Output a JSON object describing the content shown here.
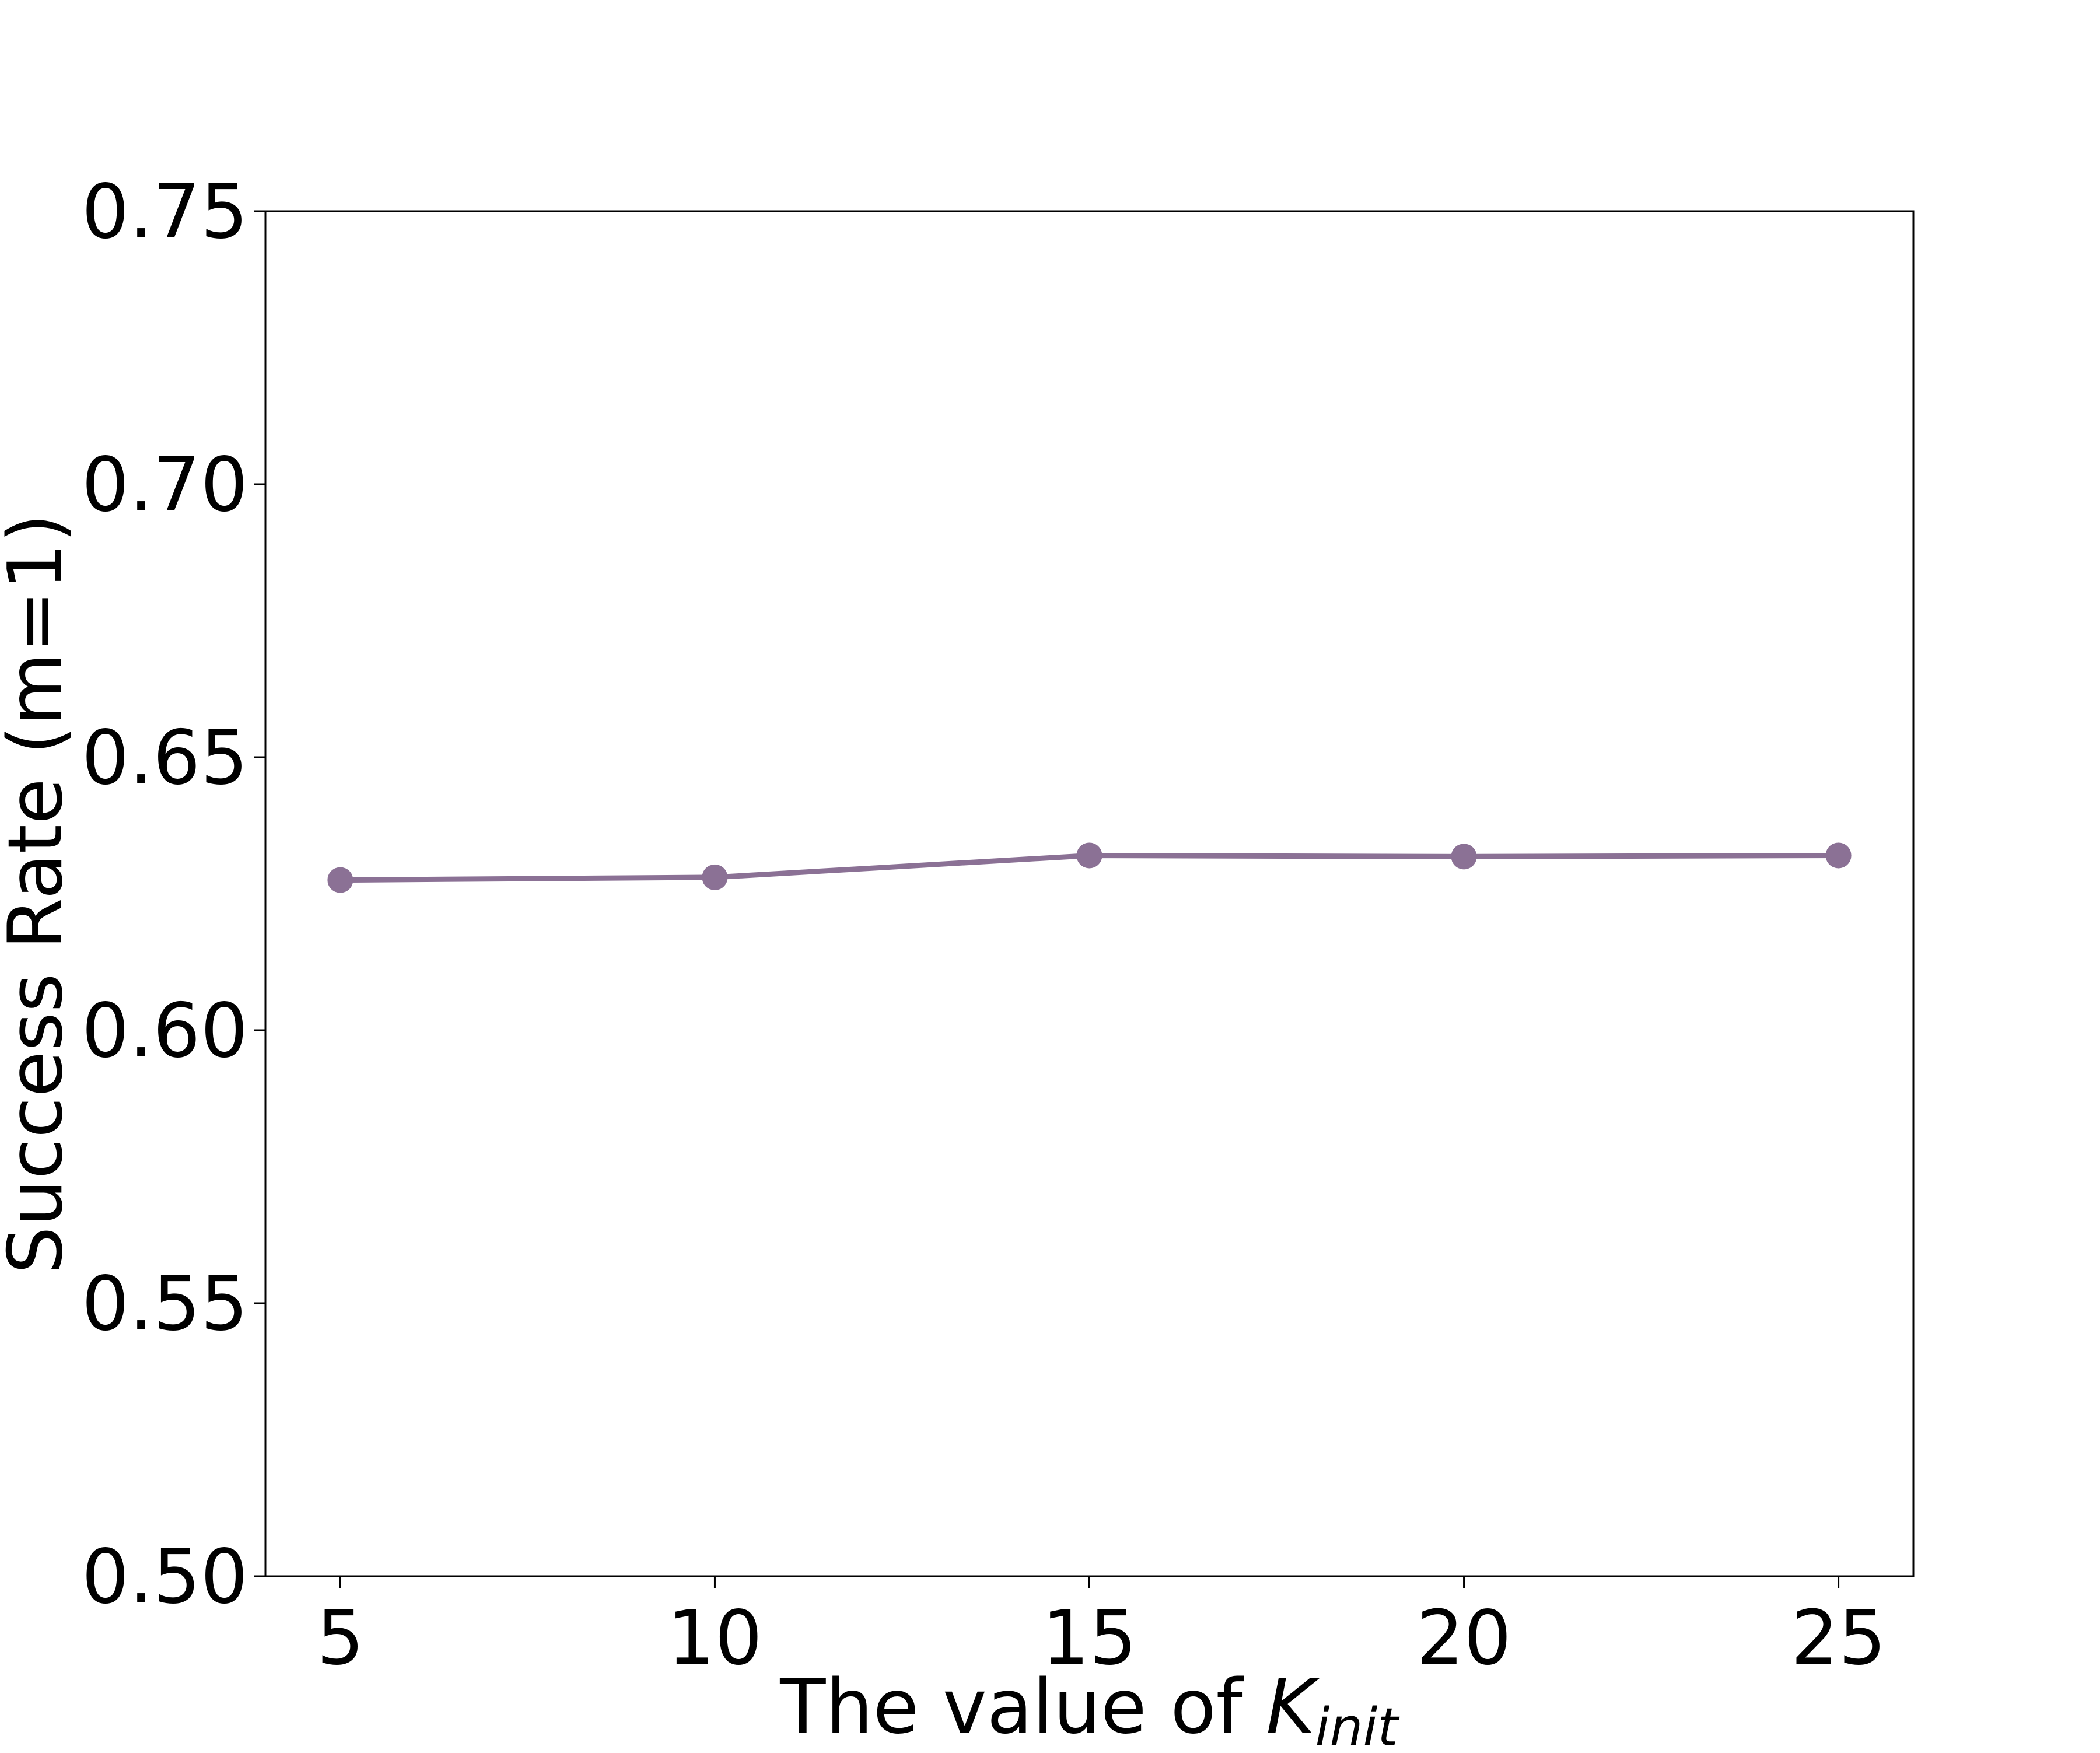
{
  "chart_data": {
    "type": "line",
    "title": "",
    "xlabel_prefix": "The value of ",
    "xlabel_var": "K",
    "xlabel_sub": "init",
    "ylabel": "Success Rate (m=1)",
    "x": [
      5,
      10,
      15,
      20,
      25
    ],
    "series": [
      {
        "values": [
          0.6275,
          0.628,
          0.632,
          0.6318,
          0.632
        ],
        "color": "#8b7195"
      }
    ],
    "xlim": [
      4,
      26
    ],
    "ylim": [
      0.5,
      0.75
    ],
    "xticks": [
      5,
      10,
      15,
      20,
      25
    ],
    "xtick_labels": [
      "5",
      "10",
      "15",
      "20",
      "25"
    ],
    "yticks": [
      0.5,
      0.55,
      0.6,
      0.65,
      0.7,
      0.75
    ],
    "ytick_labels": [
      "0.50",
      "0.55",
      "0.60",
      "0.65",
      "0.70",
      "0.75"
    ],
    "grid": false,
    "legend": false,
    "marker": "circle"
  }
}
